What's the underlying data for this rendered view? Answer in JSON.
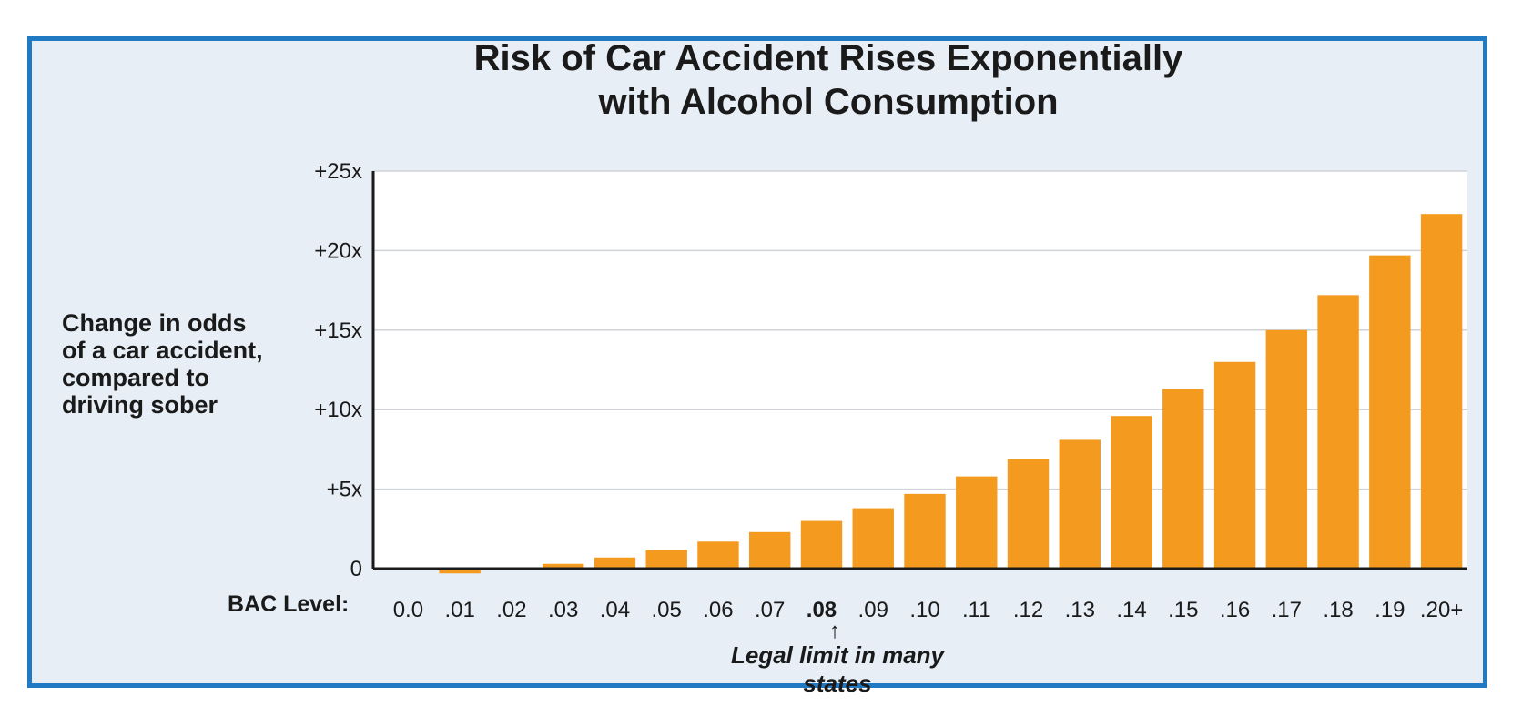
{
  "chart_data": {
    "type": "bar",
    "title_lines": [
      "Risk of Car Accident Rises Exponentially",
      "with Alcohol Consumption"
    ],
    "ylabel_lines": [
      "Change in odds",
      "of a car accident,",
      "compared to",
      "driving sober"
    ],
    "xlabel": "BAC Level:",
    "categories": [
      "0.0",
      ".01",
      ".02",
      ".03",
      ".04",
      ".05",
      ".06",
      ".07",
      ".08",
      ".09",
      ".10",
      ".11",
      ".12",
      ".13",
      ".14",
      ".15",
      ".16",
      ".17",
      ".18",
      ".19",
      ".20+"
    ],
    "values": [
      0,
      -0.3,
      0.05,
      0.3,
      0.7,
      1.2,
      1.7,
      2.3,
      3.0,
      3.8,
      4.7,
      5.8,
      6.9,
      8.1,
      9.6,
      11.3,
      13.0,
      15.0,
      17.2,
      19.7,
      22.3
    ],
    "highlight_category": ".08",
    "yticks": [
      0,
      5,
      10,
      15,
      20,
      25
    ],
    "ytick_labels": [
      "0",
      "+5x",
      "+10x",
      "+15x",
      "+20x",
      "+25x"
    ],
    "ylim": [
      -0.4,
      25
    ],
    "grid": true,
    "bar_color": "#f39a1f",
    "annotation": {
      "arrow": "↑",
      "text": "Legal limit in many states",
      "category": ".08"
    }
  },
  "colors": {
    "frame_border": "#1f7ac3",
    "frame_background": "#e7eef6",
    "plot_background": "#ffffff"
  }
}
